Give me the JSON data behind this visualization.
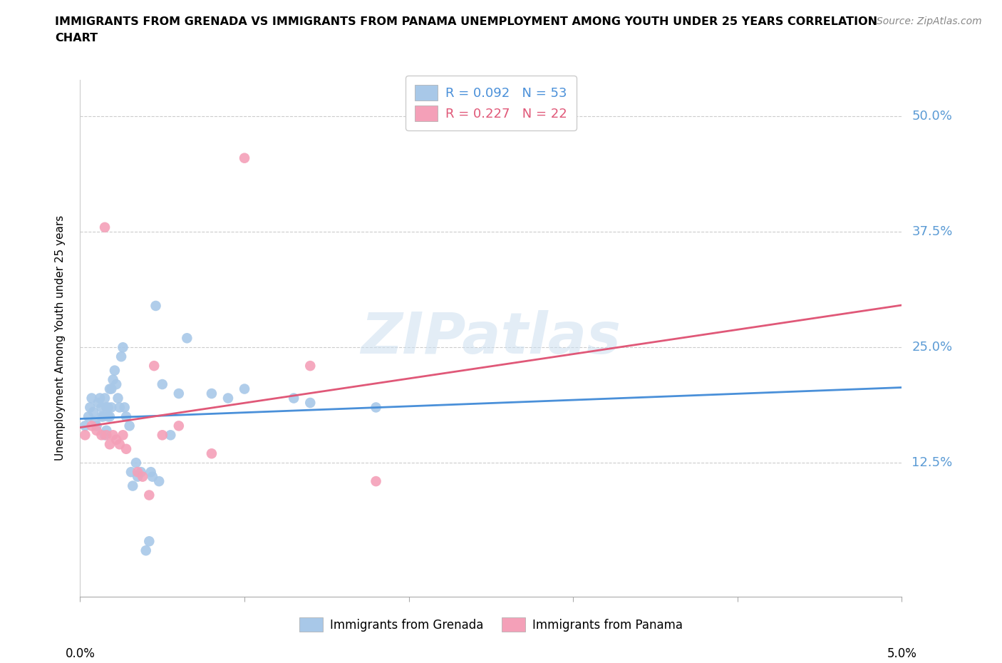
{
  "title_line1": "IMMIGRANTS FROM GRENADA VS IMMIGRANTS FROM PANAMA UNEMPLOYMENT AMONG YOUTH UNDER 25 YEARS CORRELATION",
  "title_line2": "CHART",
  "source": "Source: ZipAtlas.com",
  "ylabel": "Unemployment Among Youth under 25 years",
  "ytick_labels": [
    "12.5%",
    "25.0%",
    "37.5%",
    "50.0%"
  ],
  "ytick_values": [
    0.125,
    0.25,
    0.375,
    0.5
  ],
  "xmin": 0.0,
  "xmax": 0.05,
  "ymin": -0.02,
  "ymax": 0.54,
  "watermark": "ZIPatlas",
  "legend_r1": "R = 0.092",
  "legend_n1": "N = 53",
  "legend_r2": "R = 0.227",
  "legend_n2": "N = 22",
  "color_grenada": "#a8c8e8",
  "color_panama": "#f4a0b8",
  "color_grenada_line": "#4a90d9",
  "color_panama_line": "#e05878",
  "color_ytick": "#5b9bd5",
  "grenada_x": [
    0.0003,
    0.0005,
    0.0006,
    0.0007,
    0.0008,
    0.0009,
    0.001,
    0.0011,
    0.0012,
    0.0013,
    0.0013,
    0.0014,
    0.0015,
    0.0015,
    0.0016,
    0.0016,
    0.0017,
    0.0017,
    0.0018,
    0.0018,
    0.0019,
    0.0019,
    0.002,
    0.0021,
    0.0022,
    0.0023,
    0.0024,
    0.0025,
    0.0026,
    0.0027,
    0.0028,
    0.003,
    0.0031,
    0.0032,
    0.0034,
    0.0035,
    0.0037,
    0.004,
    0.0042,
    0.0043,
    0.0044,
    0.0046,
    0.0048,
    0.005,
    0.0055,
    0.006,
    0.0065,
    0.008,
    0.009,
    0.01,
    0.013,
    0.014,
    0.018
  ],
  "grenada_y": [
    0.165,
    0.175,
    0.185,
    0.195,
    0.18,
    0.17,
    0.165,
    0.19,
    0.195,
    0.175,
    0.185,
    0.175,
    0.155,
    0.195,
    0.16,
    0.185,
    0.175,
    0.185,
    0.175,
    0.205,
    0.185,
    0.205,
    0.215,
    0.225,
    0.21,
    0.195,
    0.185,
    0.24,
    0.25,
    0.185,
    0.175,
    0.165,
    0.115,
    0.1,
    0.125,
    0.11,
    0.115,
    0.03,
    0.04,
    0.115,
    0.11,
    0.295,
    0.105,
    0.21,
    0.155,
    0.2,
    0.26,
    0.2,
    0.195,
    0.205,
    0.195,
    0.19,
    0.185
  ],
  "panama_x": [
    0.0003,
    0.0007,
    0.001,
    0.0013,
    0.0015,
    0.0016,
    0.0018,
    0.002,
    0.0022,
    0.0024,
    0.0026,
    0.0028,
    0.0035,
    0.0038,
    0.0042,
    0.0045,
    0.005,
    0.006,
    0.008,
    0.01,
    0.014,
    0.018
  ],
  "panama_y": [
    0.155,
    0.165,
    0.16,
    0.155,
    0.38,
    0.155,
    0.145,
    0.155,
    0.15,
    0.145,
    0.155,
    0.14,
    0.115,
    0.11,
    0.09,
    0.23,
    0.155,
    0.165,
    0.135,
    0.455,
    0.23,
    0.105
  ]
}
